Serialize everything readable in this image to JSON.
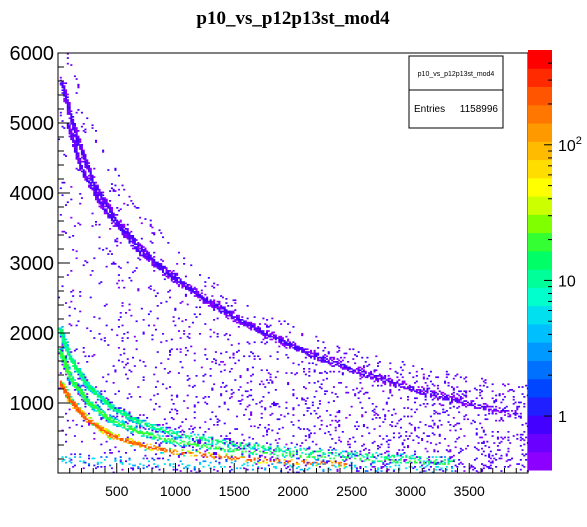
{
  "chart_data": {
    "type": "heatmap",
    "title": "p10_vs_p12p13st_mod4",
    "xlabel": "",
    "ylabel": "",
    "xlim": [
      0,
      4000
    ],
    "ylim": [
      0,
      6000
    ],
    "x_ticks": [
      "500",
      "1000",
      "1500",
      "2000",
      "2500",
      "3000",
      "3500"
    ],
    "x_tick_values": [
      500,
      1000,
      1500,
      2000,
      2500,
      3000,
      3500
    ],
    "y_ticks": [
      "1000",
      "2000",
      "3000",
      "4000",
      "5000",
      "6000"
    ],
    "y_tick_values": [
      1000,
      2000,
      3000,
      4000,
      5000,
      6000
    ],
    "z_scale": "log",
    "z_range": [
      0.4,
      500
    ],
    "z_ticks": [
      {
        "label": "1",
        "value": 1
      },
      {
        "label": "10",
        "value": 10
      },
      {
        "label": "10",
        "exp": "2",
        "value": 100
      }
    ],
    "palette": [
      "#8b00ff",
      "#6a00ff",
      "#4400ff",
      "#1f1fff",
      "#0045ff",
      "#0070ff",
      "#0099ff",
      "#00bfff",
      "#00e0ef",
      "#00ffcc",
      "#00ff99",
      "#00ff66",
      "#33ff33",
      "#80ff00",
      "#ccff00",
      "#ffff00",
      "#ffdd00",
      "#ffbb00",
      "#ff9900",
      "#ff7700",
      "#ff5500",
      "#ff2a00",
      "#ff0000"
    ],
    "stats_box": {
      "name": "p10_vs_p12p13st_mod4",
      "entries_label": "Entries",
      "entries": "1158996"
    },
    "bands": [
      {
        "points": [
          [
            30,
            5600
          ],
          [
            150,
            4850
          ],
          [
            300,
            4150
          ],
          [
            500,
            3600
          ],
          [
            800,
            3050
          ],
          [
            1200,
            2550
          ],
          [
            1600,
            2150
          ],
          [
            2000,
            1820
          ],
          [
            2500,
            1500
          ],
          [
            3000,
            1230
          ],
          [
            3500,
            1000
          ],
          [
            3950,
            830
          ]
        ],
        "width": 55,
        "level": 0.9,
        "density": 0.55
      },
      {
        "points": [
          [
            80,
            5000
          ],
          [
            200,
            4350
          ],
          [
            400,
            3750
          ],
          [
            700,
            3150
          ],
          [
            1000,
            2750
          ],
          [
            1400,
            2300
          ],
          [
            1800,
            1950
          ],
          [
            2200,
            1650
          ],
          [
            2700,
            1350
          ],
          [
            3200,
            1100
          ],
          [
            3700,
            900
          ]
        ],
        "width": 45,
        "level": 0.85,
        "density": 0.5
      },
      {
        "points": [
          [
            20,
            2050
          ],
          [
            100,
            1650
          ],
          [
            250,
            1250
          ],
          [
            450,
            950
          ],
          [
            700,
            720
          ],
          [
            1000,
            560
          ],
          [
            1500,
            420
          ],
          [
            2000,
            330
          ],
          [
            2500,
            270
          ],
          [
            3000,
            220
          ],
          [
            3400,
            180
          ]
        ],
        "width": 70,
        "level": 14,
        "density": 1.0
      },
      {
        "points": [
          [
            20,
            1750
          ],
          [
            100,
            1380
          ],
          [
            250,
            1020
          ],
          [
            450,
            760
          ],
          [
            700,
            580
          ],
          [
            1000,
            450
          ],
          [
            1500,
            330
          ],
          [
            2000,
            260
          ],
          [
            2500,
            210
          ],
          [
            3000,
            170
          ],
          [
            3400,
            140
          ]
        ],
        "width": 70,
        "level": 20,
        "density": 1.0
      },
      {
        "points": [
          [
            20,
            1300
          ],
          [
            100,
            1050
          ],
          [
            250,
            760
          ],
          [
            450,
            540
          ],
          [
            700,
            400
          ],
          [
            1000,
            300
          ],
          [
            1500,
            210
          ],
          [
            2000,
            160
          ],
          [
            2400,
            130
          ],
          [
            2460,
            120
          ]
        ],
        "width": 50,
        "level": 250,
        "density": 1.0
      },
      {
        "points": [
          [
            30,
            200
          ],
          [
            600,
            150
          ],
          [
            1200,
            120
          ],
          [
            1800,
            100
          ],
          [
            2400,
            90
          ],
          [
            3000,
            80
          ],
          [
            3400,
            70
          ]
        ],
        "width": 120,
        "level": 6,
        "density": 1.0
      }
    ]
  }
}
